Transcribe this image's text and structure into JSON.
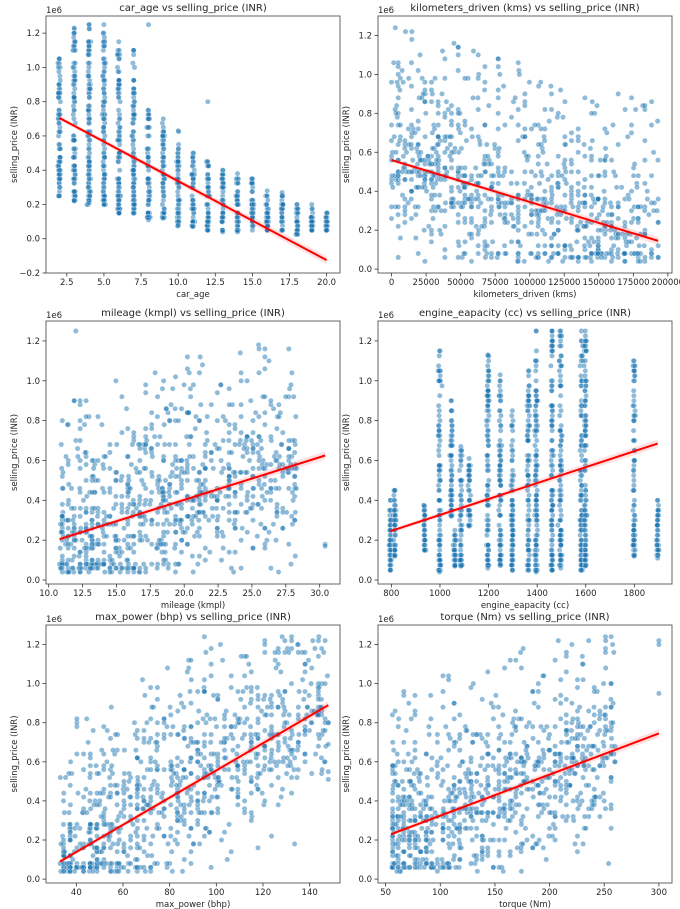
{
  "chart_data": [
    {
      "type": "scatter",
      "title": "car_age vs selling_price (INR)",
      "xlabel": "car_age",
      "ylabel": "selling_price (INR)",
      "y_offset_label": "1e6",
      "xlim": [
        1.1,
        20.9
      ],
      "ylim": [
        -0.2,
        1.3
      ],
      "xticks": [
        2.5,
        5.0,
        7.5,
        10.0,
        12.5,
        15.0,
        17.5,
        20.0
      ],
      "xtick_labels": [
        "2.5",
        "5.0",
        "7.5",
        "10.0",
        "12.5",
        "15.0",
        "17.5",
        "20.0"
      ],
      "yticks": [
        -0.2,
        0.0,
        0.2,
        0.4,
        0.6,
        0.8,
        1.0,
        1.2
      ],
      "ytick_labels": [
        "−0.2",
        "0.0",
        "0.2",
        "0.4",
        "0.6",
        "0.8",
        "1.0",
        "1.2"
      ],
      "x_distribution": "discrete",
      "x_values": [
        2,
        3,
        4,
        5,
        6,
        7,
        8,
        9,
        10,
        11,
        12,
        13,
        14,
        15,
        16,
        17,
        18,
        19,
        20
      ],
      "column_ranges": [
        [
          0.25,
          1.05
        ],
        [
          0.22,
          1.23
        ],
        [
          0.21,
          1.25
        ],
        [
          0.2,
          1.25
        ],
        [
          0.15,
          1.15
        ],
        [
          0.15,
          1.1
        ],
        [
          0.11,
          0.75
        ],
        [
          0.12,
          0.7
        ],
        [
          0.08,
          0.63
        ],
        [
          0.07,
          0.5
        ],
        [
          0.05,
          0.45
        ],
        [
          0.04,
          0.4
        ],
        [
          0.04,
          0.38
        ],
        [
          0.05,
          0.35
        ],
        [
          0.05,
          0.28
        ],
        [
          0.05,
          0.27
        ],
        [
          0.03,
          0.2
        ],
        [
          0.05,
          0.2
        ],
        [
          0.05,
          0.15
        ]
      ],
      "outliers": [
        [
          8,
          1.25
        ],
        [
          12,
          0.8
        ]
      ],
      "regression": {
        "x": [
          2,
          20
        ],
        "y": [
          0.705,
          -0.125
        ],
        "color": "#ff0000"
      },
      "point_color": "#1f77b4"
    },
    {
      "type": "scatter",
      "title": "kilometers_driven (kms) vs selling_price (INR)",
      "xlabel": "kilometers_driven (kms)",
      "ylabel": "selling_price (INR)",
      "y_offset_label": "1e6",
      "xlim": [
        -9800,
        203000
      ],
      "ylim": [
        -0.02,
        1.3
      ],
      "xticks": [
        0,
        25000,
        50000,
        75000,
        100000,
        125000,
        150000,
        175000,
        200000
      ],
      "xtick_labels": [
        "0",
        "25000",
        "50000",
        "75000",
        "100000",
        "125000",
        "150000",
        "175000",
        "200000"
      ],
      "yticks": [
        0.0,
        0.2,
        0.4,
        0.6,
        0.8,
        1.0,
        1.2
      ],
      "ytick_labels": [
        "0.0",
        "0.2",
        "0.4",
        "0.6",
        "0.8",
        "1.0",
        "1.2"
      ],
      "x_distribution": "continuous",
      "x_range": [
        0,
        193000
      ],
      "regression": {
        "x": [
          0,
          193000
        ],
        "y": [
          0.56,
          0.145
        ],
        "color": "#ff0000"
      },
      "point_color": "#1f77b4"
    },
    {
      "type": "scatter",
      "title": "mileage (kmpl) vs selling_price (INR)",
      "xlabel": "mileage (kmpl)",
      "ylabel": "selling_price (INR)",
      "y_offset_label": "1e6",
      "xlim": [
        9.8,
        31.5
      ],
      "ylim": [
        -0.02,
        1.3
      ],
      "xticks": [
        10.0,
        12.5,
        15.0,
        17.5,
        20.0,
        22.5,
        25.0,
        27.5,
        30.0
      ],
      "xtick_labels": [
        "10.0",
        "12.5",
        "15.0",
        "17.5",
        "20.0",
        "22.5",
        "25.0",
        "27.5",
        "30.0"
      ],
      "yticks": [
        0.0,
        0.2,
        0.4,
        0.6,
        0.8,
        1.0,
        1.2
      ],
      "ytick_labels": [
        "0.0",
        "0.2",
        "0.4",
        "0.6",
        "0.8",
        "1.0",
        "1.2"
      ],
      "x_distribution": "continuous",
      "x_range": [
        10.8,
        28.4
      ],
      "outliers": [
        [
          12.0,
          1.25
        ],
        [
          30.4,
          0.18
        ],
        [
          30.4,
          0.17
        ]
      ],
      "regression": {
        "x": [
          10.8,
          30.4
        ],
        "y": [
          0.205,
          0.625
        ],
        "color": "#ff0000"
      },
      "point_color": "#1f77b4"
    },
    {
      "type": "scatter",
      "title": "engine_eapacity (cc) vs selling_price (INR)",
      "xlabel": "engine_eapacity (cc)",
      "ylabel": "selling_price (INR)",
      "y_offset_label": "1e6",
      "xlim": [
        745,
        1955
      ],
      "ylim": [
        -0.02,
        1.3
      ],
      "xticks": [
        800,
        1000,
        1200,
        1400,
        1600,
        1800
      ],
      "xtick_labels": [
        "800",
        "1000",
        "1200",
        "1400",
        "1600",
        "1800"
      ],
      "yticks": [
        0.0,
        0.2,
        0.4,
        0.6,
        0.8,
        1.0,
        1.2
      ],
      "ytick_labels": [
        "0.0",
        "0.2",
        "0.4",
        "0.6",
        "0.8",
        "1.0",
        "1.2"
      ],
      "x_distribution": "discrete",
      "x_values": [
        796,
        814,
        936,
        998,
        1047,
        1061,
        1086,
        1120,
        1197,
        1248,
        1298,
        1364,
        1396,
        1461,
        1497,
        1582,
        1598,
        1799,
        1896
      ],
      "column_ranges": [
        [
          0.05,
          0.4
        ],
        [
          0.12,
          0.45
        ],
        [
          0.15,
          0.37
        ],
        [
          0.04,
          1.15
        ],
        [
          0.32,
          0.9
        ],
        [
          0.07,
          0.25
        ],
        [
          0.07,
          0.67
        ],
        [
          0.27,
          0.61
        ],
        [
          0.06,
          1.13
        ],
        [
          0.08,
          1.03
        ],
        [
          0.05,
          0.85
        ],
        [
          0.05,
          1.05
        ],
        [
          0.04,
          1.25
        ],
        [
          0.05,
          1.25
        ],
        [
          0.06,
          1.25
        ],
        [
          0.05,
          1.25
        ],
        [
          0.07,
          1.25
        ],
        [
          0.12,
          1.1
        ],
        [
          0.11,
          0.4
        ]
      ],
      "regression": {
        "x": [
          796,
          1896
        ],
        "y": [
          0.245,
          0.685
        ],
        "color": "#ff0000"
      },
      "point_color": "#1f77b4"
    },
    {
      "type": "scatter",
      "title": "max_power (bhp) vs selling_price (INR)",
      "xlabel": "max_power (bhp)",
      "ylabel": "selling_price (INR)",
      "y_offset_label": "1e6",
      "xlim": [
        27,
        153
      ],
      "ylim": [
        -0.02,
        1.3
      ],
      "xticks": [
        40,
        60,
        80,
        100,
        120,
        140
      ],
      "xtick_labels": [
        "40",
        "60",
        "80",
        "100",
        "120",
        "140"
      ],
      "yticks": [
        0.0,
        0.2,
        0.4,
        0.6,
        0.8,
        1.0,
        1.2
      ],
      "ytick_labels": [
        "0.0",
        "0.2",
        "0.4",
        "0.6",
        "0.8",
        "1.0",
        "1.2"
      ],
      "x_distribution": "continuous",
      "x_range": [
        33,
        148
      ],
      "outliers": [
        [
          138,
          1.1
        ],
        [
          148,
          0.8
        ],
        [
          148,
          0.69
        ],
        [
          148,
          0.55
        ],
        [
          148,
          0.51
        ]
      ],
      "regression": {
        "x": [
          33,
          148
        ],
        "y": [
          0.09,
          0.89
        ],
        "color": "#ff0000"
      },
      "point_color": "#1f77b4"
    },
    {
      "type": "scatter",
      "title": "torque (Nm) vs selling_price (INR)",
      "xlabel": "torque (Nm)",
      "ylabel": "selling_price (INR)",
      "y_offset_label": "1e6",
      "xlim": [
        43,
        312
      ],
      "ylim": [
        -0.02,
        1.3
      ],
      "xticks": [
        50,
        100,
        150,
        200,
        250,
        300
      ],
      "xtick_labels": [
        "50",
        "100",
        "150",
        "200",
        "250",
        "300"
      ],
      "yticks": [
        0.0,
        0.2,
        0.4,
        0.6,
        0.8,
        1.0,
        1.2
      ],
      "ytick_labels": [
        "0.0",
        "0.2",
        "0.4",
        "0.6",
        "0.8",
        "1.0",
        "1.2"
      ],
      "x_distribution": "continuous",
      "x_range": [
        55,
        260
      ],
      "outliers": [
        [
          300,
          1.22
        ],
        [
          300,
          1.2
        ],
        [
          300,
          0.95
        ]
      ],
      "regression": {
        "x": [
          55,
          300
        ],
        "y": [
          0.23,
          0.745
        ],
        "color": "#ff0000"
      },
      "point_color": "#1f77b4"
    }
  ]
}
